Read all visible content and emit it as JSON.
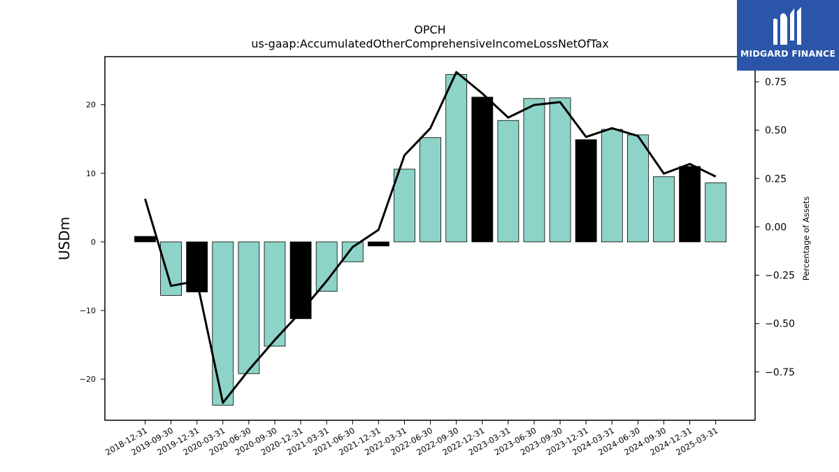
{
  "chart_data": {
    "type": "bar",
    "title": "OPCH",
    "subtitle": "us-gaap:AccumulatedOtherComprehensiveIncomeLossNetOfTax",
    "ylabel": "USDm",
    "y2label": "Percentage of Assets",
    "ylim": [
      -26.0,
      27.0
    ],
    "y2lim": [
      -1.0,
      0.88
    ],
    "yticks": [
      -20,
      -10,
      0,
      10,
      20
    ],
    "y2ticks": [
      -0.75,
      -0.5,
      -0.25,
      0.0,
      0.25,
      0.5,
      0.75
    ],
    "categories": [
      "2018-12-31",
      "2019-09-30",
      "2019-12-31",
      "2020-03-31",
      "2020-06-30",
      "2020-09-30",
      "2020-12-31",
      "2021-03-31",
      "2021-06-30",
      "2021-12-31",
      "2022-03-31",
      "2022-06-30",
      "2022-09-30",
      "2022-12-31",
      "2023-03-31",
      "2023-06-30",
      "2023-09-30",
      "2023-12-31",
      "2024-03-31",
      "2024-06-30",
      "2024-09-30",
      "2024-12-31",
      "2025-03-31"
    ],
    "series": [
      {
        "kind": "bar",
        "values": [
          0.8,
          -7.8,
          -7.3,
          -23.8,
          -19.2,
          -15.2,
          -11.2,
          -7.2,
          -2.9,
          -0.6,
          10.6,
          15.2,
          24.4,
          21.1,
          17.7,
          20.9,
          21.0,
          14.9,
          16.4,
          15.6,
          9.5,
          11.0,
          8.6
        ],
        "highlight": [
          true,
          false,
          true,
          false,
          false,
          false,
          true,
          false,
          false,
          true,
          false,
          false,
          false,
          true,
          false,
          false,
          false,
          true,
          false,
          false,
          false,
          true,
          false
        ],
        "color": "#8dd3c7",
        "highlight_color": "#000000"
      },
      {
        "kind": "line",
        "axis": "right",
        "values": [
          0.145,
          -0.305,
          -0.28,
          -0.91,
          -0.74,
          -0.585,
          -0.44,
          -0.28,
          -0.105,
          -0.015,
          0.37,
          0.51,
          0.8,
          0.69,
          0.565,
          0.63,
          0.645,
          0.465,
          0.51,
          0.47,
          0.275,
          0.325,
          0.26
        ],
        "color": "#000000"
      }
    ],
    "grid": false
  },
  "logo": {
    "text": "MIDGARD FINANCE",
    "color": "#2a55a8"
  }
}
